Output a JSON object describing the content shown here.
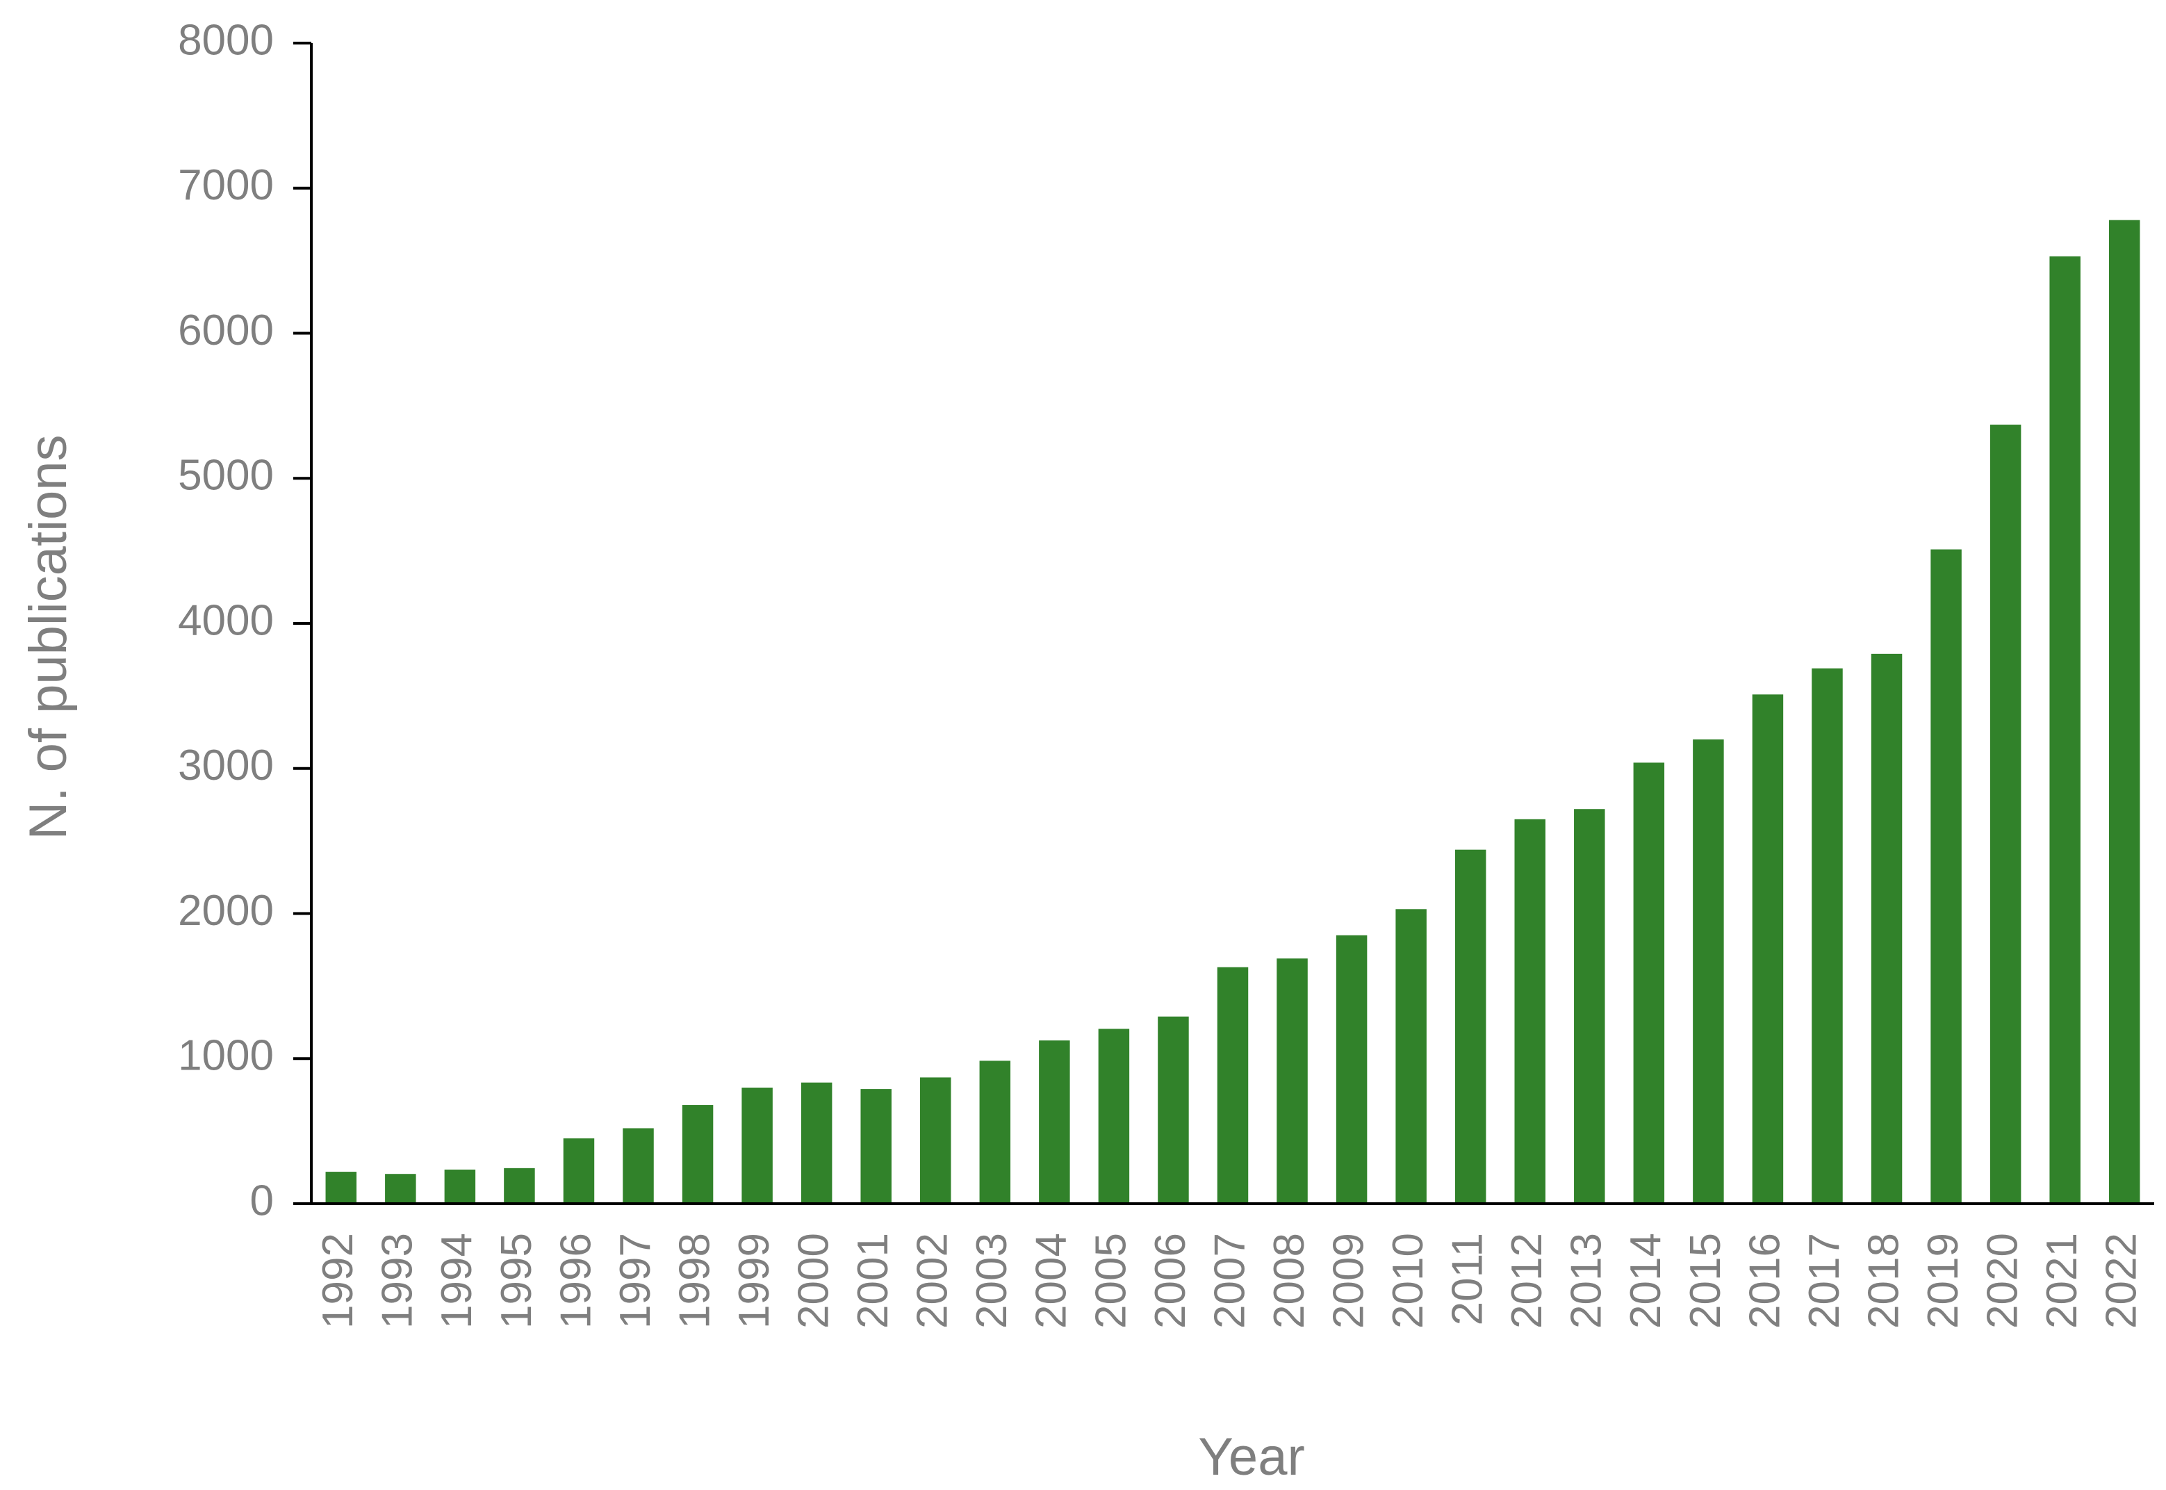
{
  "chart_data": {
    "type": "bar",
    "title": "",
    "xlabel": "Year",
    "ylabel": "N. of publications",
    "ylim": [
      0,
      8000
    ],
    "yticks": [
      "0",
      "1000",
      "2000",
      "3000",
      "4000",
      "5000",
      "6000",
      "7000",
      "8000"
    ],
    "grid": false,
    "legend": "none",
    "bar_color": "#31822a",
    "categories": [
      "1992",
      "1993",
      "1994",
      "1995",
      "1996",
      "1997",
      "1998",
      "1999",
      "2000",
      "2001",
      "2002",
      "2003",
      "2004",
      "2005",
      "2006",
      "2007",
      "2008",
      "2009",
      "2010",
      "2011",
      "2012",
      "2013",
      "2014",
      "2015",
      "2016",
      "2017",
      "2018",
      "2019",
      "2020",
      "2021",
      "2022"
    ],
    "values": [
      220,
      205,
      235,
      245,
      450,
      520,
      680,
      800,
      835,
      790,
      870,
      985,
      1125,
      1205,
      1290,
      1630,
      1690,
      1850,
      2030,
      2440,
      2650,
      2720,
      3040,
      3200,
      3510,
      3690,
      3790,
      4510,
      5370,
      6530,
      6780
    ]
  }
}
